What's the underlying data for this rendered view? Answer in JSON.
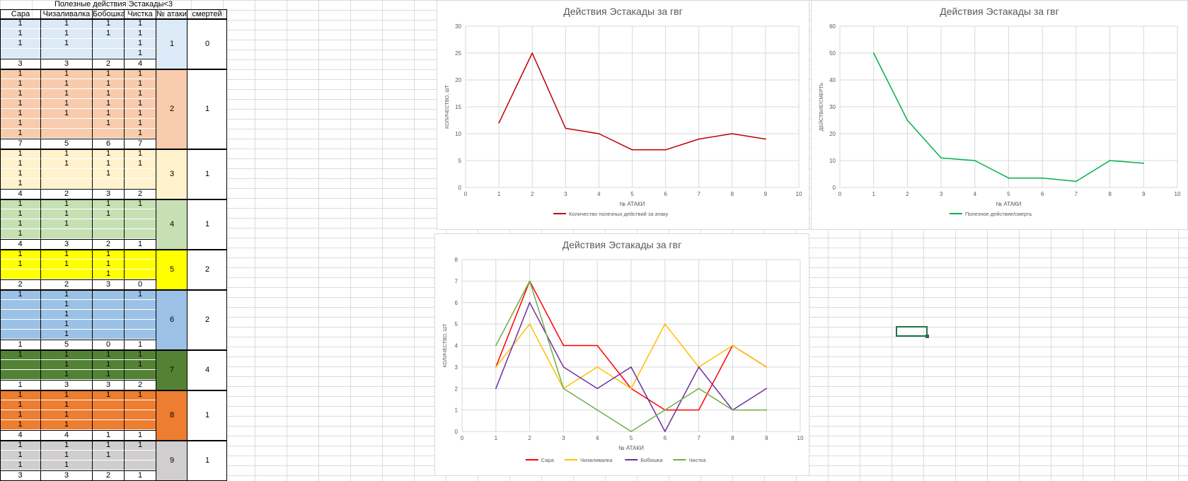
{
  "sheet": {
    "title": "Полезные действия Эстакады<3",
    "headers": [
      "Сара",
      "Чизаливалка",
      "Бобошка",
      "Чистка",
      "№ атаки",
      "смертей"
    ],
    "groups": [
      {
        "attack": "1",
        "deaths": "0",
        "color": "#dce9f6",
        "rows": [
          [
            "1",
            "1",
            "1",
            "1"
          ],
          [
            "1",
            "1",
            "1",
            "1"
          ],
          [
            "1",
            "1",
            "",
            "1"
          ],
          [
            "",
            "",
            "",
            "1"
          ]
        ],
        "totals": [
          "3",
          "3",
          "2",
          "4"
        ]
      },
      {
        "attack": "2",
        "deaths": "1",
        "color": "#f8cbad",
        "rows": [
          [
            "1",
            "1",
            "1",
            "1"
          ],
          [
            "1",
            "1",
            "1",
            "1"
          ],
          [
            "1",
            "1",
            "1",
            "1"
          ],
          [
            "1",
            "1",
            "1",
            "1"
          ],
          [
            "1",
            "1",
            "1",
            "1"
          ],
          [
            "1",
            "",
            "1",
            "1"
          ],
          [
            "1",
            "",
            "",
            "1"
          ]
        ],
        "totals": [
          "7",
          "5",
          "6",
          "7"
        ]
      },
      {
        "attack": "3",
        "deaths": "1",
        "color": "#fff2cc",
        "rows": [
          [
            "1",
            "1",
            "1",
            "1"
          ],
          [
            "1",
            "1",
            "1",
            "1"
          ],
          [
            "1",
            "",
            "1",
            ""
          ],
          [
            "1",
            "",
            "",
            ""
          ]
        ],
        "totals": [
          "4",
          "2",
          "3",
          "2"
        ]
      },
      {
        "attack": "4",
        "deaths": "1",
        "color": "#c6e0b4",
        "rows": [
          [
            "1",
            "1",
            "1",
            "1"
          ],
          [
            "1",
            "1",
            "1",
            ""
          ],
          [
            "1",
            "1",
            "",
            ""
          ],
          [
            "1",
            "",
            "",
            ""
          ]
        ],
        "totals": [
          "4",
          "3",
          "2",
          "1"
        ]
      },
      {
        "attack": "5",
        "deaths": "2",
        "color": "#ffff00",
        "rows": [
          [
            "1",
            "1",
            "1",
            ""
          ],
          [
            "1",
            "1",
            "1",
            ""
          ],
          [
            "",
            "",
            "1",
            ""
          ]
        ],
        "totals": [
          "2",
          "2",
          "3",
          "0"
        ]
      },
      {
        "attack": "6",
        "deaths": "2",
        "color": "#9bc2e6",
        "rows": [
          [
            "1",
            "1",
            "",
            "1"
          ],
          [
            "",
            "1",
            "",
            ""
          ],
          [
            "",
            "1",
            "",
            ""
          ],
          [
            "",
            "1",
            "",
            ""
          ],
          [
            "",
            "1",
            "",
            ""
          ]
        ],
        "totals": [
          "1",
          "5",
          "0",
          "1"
        ]
      },
      {
        "attack": "7",
        "deaths": "4",
        "color": "#548235",
        "rows": [
          [
            "1",
            "1",
            "1",
            "1"
          ],
          [
            "",
            "1",
            "1",
            "1"
          ],
          [
            "",
            "1",
            "1",
            ""
          ]
        ],
        "totals": [
          "1",
          "3",
          "3",
          "2"
        ]
      },
      {
        "attack": "8",
        "deaths": "1",
        "color": "#ed7d31",
        "rows": [
          [
            "1",
            "1",
            "1",
            "1"
          ],
          [
            "1",
            "1",
            "",
            ""
          ],
          [
            "1",
            "1",
            "",
            ""
          ],
          [
            "1",
            "1",
            "",
            ""
          ]
        ],
        "totals": [
          "4",
          "4",
          "1",
          "1"
        ]
      },
      {
        "attack": "9",
        "deaths": "1",
        "color": "#d0cece",
        "rows": [
          [
            "1",
            "1",
            "1",
            "1"
          ],
          [
            "1",
            "1",
            "1",
            ""
          ],
          [
            "1",
            "1",
            "",
            ""
          ]
        ],
        "totals": [
          "3",
          "3",
          "2",
          "1"
        ]
      }
    ]
  },
  "chart_data": [
    {
      "type": "line",
      "title": "Действия Эстакады за гвг",
      "xlabel": "№ АТАКИ",
      "ylabel": "КОЛИЧЕСТВО, ШТ",
      "xlim": [
        0,
        10
      ],
      "ylim": [
        0,
        30
      ],
      "xticks": [
        0,
        1,
        2,
        3,
        4,
        5,
        6,
        7,
        8,
        9,
        10
      ],
      "yticks": [
        0,
        5,
        10,
        15,
        20,
        25,
        30
      ],
      "grid": true,
      "legend_position": "bottom",
      "series": [
        {
          "name": "Количество полезных действий за атаку",
          "color": "#c00000",
          "x": [
            1,
            2,
            3,
            4,
            5,
            6,
            7,
            8,
            9
          ],
          "values": [
            12,
            25,
            11,
            10,
            7,
            7,
            9,
            10,
            9
          ]
        }
      ]
    },
    {
      "type": "line",
      "title": "Действия Эстакады за гвг",
      "xlabel": "№ АТАКИ",
      "ylabel": "ДЕЙСТВИЕ/СМЕРТЬ",
      "xlim": [
        0,
        10
      ],
      "ylim": [
        0,
        60
      ],
      "xticks": [
        0,
        1,
        2,
        3,
        4,
        5,
        6,
        7,
        8,
        9,
        10
      ],
      "yticks": [
        0,
        10,
        20,
        30,
        40,
        50,
        60
      ],
      "grid": true,
      "legend_position": "bottom",
      "series": [
        {
          "name": "Полезное действие/смерть",
          "color": "#00b050",
          "x": [
            1,
            2,
            3,
            4,
            5,
            6,
            7,
            8,
            9
          ],
          "values": [
            50,
            25,
            11,
            10,
            3.5,
            3.5,
            2.25,
            10,
            9
          ]
        }
      ]
    },
    {
      "type": "line",
      "title": "Действия Эстакады за гвг",
      "xlabel": "№ АТАКИ",
      "ylabel": "КОЛИЧЕСТВО, ШТ",
      "xlim": [
        0,
        10
      ],
      "ylim": [
        0,
        8
      ],
      "xticks": [
        0,
        1,
        2,
        3,
        4,
        5,
        6,
        7,
        8,
        9,
        10
      ],
      "yticks": [
        0,
        1,
        2,
        3,
        4,
        5,
        6,
        7,
        8
      ],
      "grid": true,
      "legend_position": "bottom",
      "series": [
        {
          "name": "Сара",
          "color": "#ff0000",
          "x": [
            1,
            2,
            3,
            4,
            5,
            6,
            7,
            8,
            9
          ],
          "values": [
            3,
            7,
            4,
            4,
            2,
            1,
            1,
            4,
            3
          ]
        },
        {
          "name": "Чизаливалка",
          "color": "#ffc000",
          "x": [
            1,
            2,
            3,
            4,
            5,
            6,
            7,
            8,
            9
          ],
          "values": [
            3,
            5,
            2,
            3,
            2,
            5,
            3,
            4,
            3
          ]
        },
        {
          "name": "Бобошка",
          "color": "#7030a0",
          "x": [
            1,
            2,
            3,
            4,
            5,
            6,
            7,
            8,
            9
          ],
          "values": [
            2,
            6,
            3,
            2,
            3,
            0,
            3,
            1,
            2
          ]
        },
        {
          "name": "Чистка",
          "color": "#70ad47",
          "x": [
            1,
            2,
            3,
            4,
            5,
            6,
            7,
            8,
            9
          ],
          "values": [
            4,
            7,
            2,
            1,
            0,
            1,
            2,
            1,
            1
          ]
        }
      ]
    }
  ]
}
